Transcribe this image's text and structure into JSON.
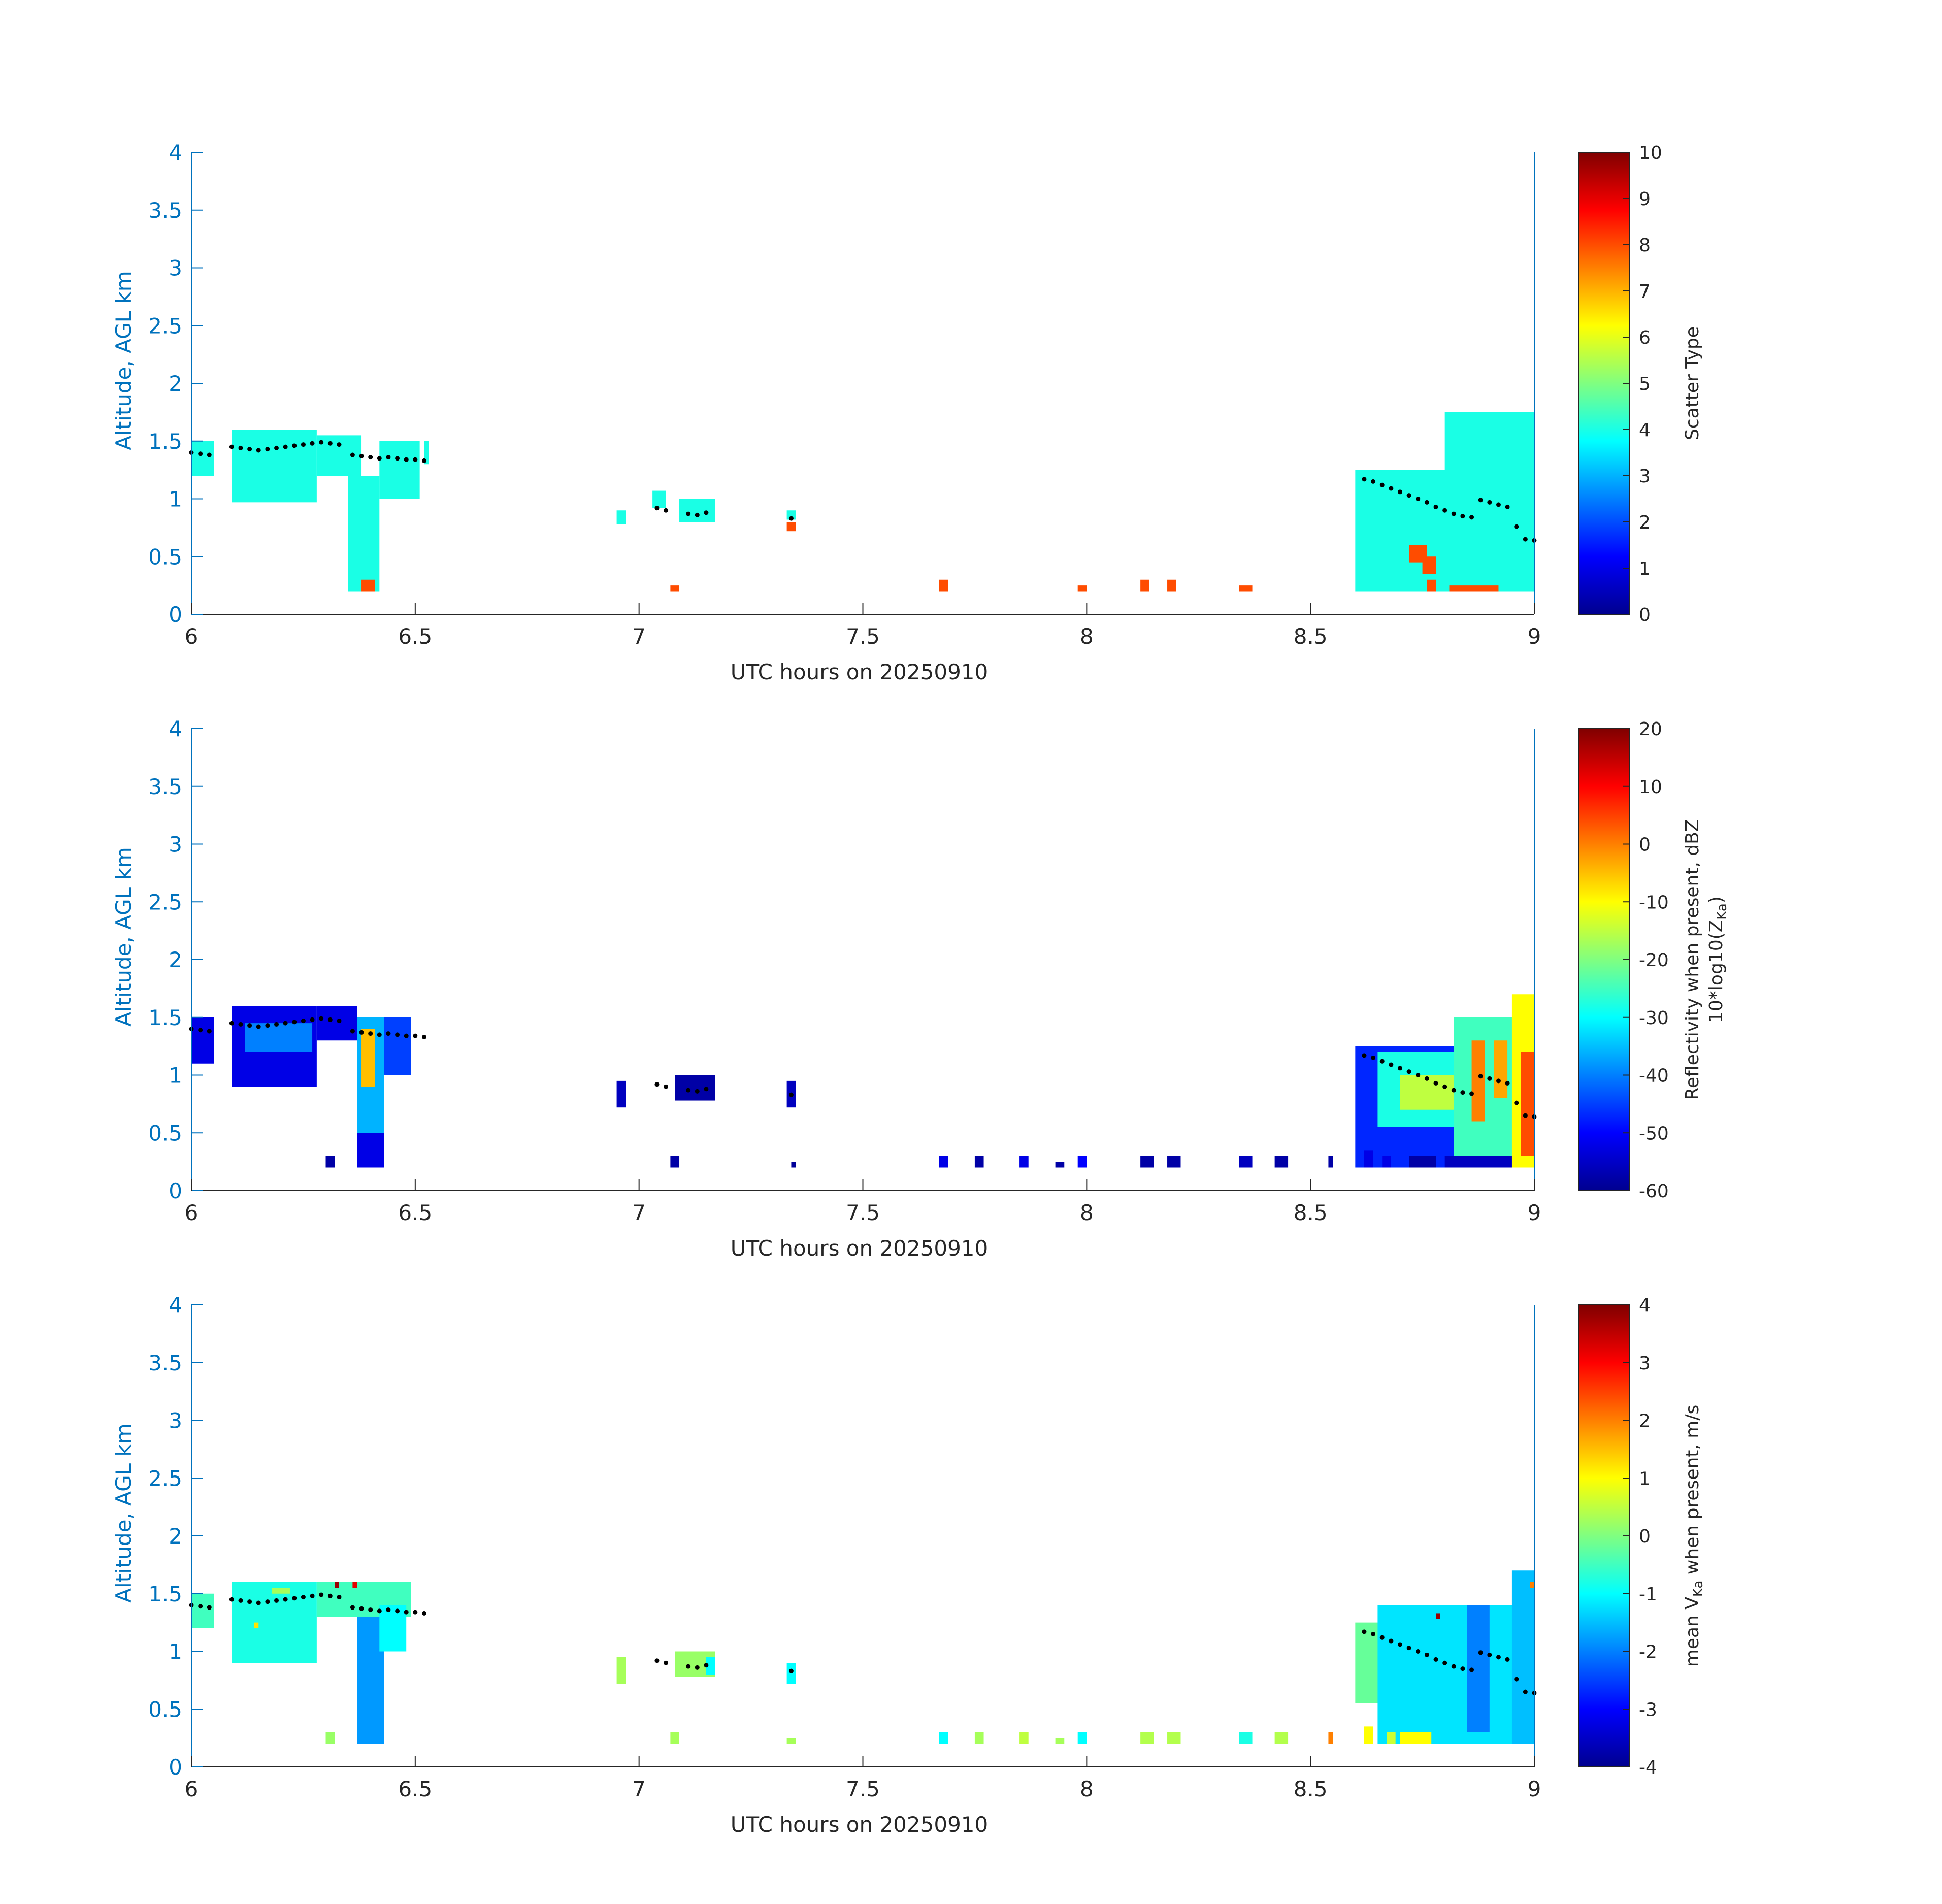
{
  "chart_data": [
    {
      "type": "heatmap",
      "xlabel": "UTC hours on 20250910",
      "ylabel": "Altitude, AGL km",
      "xlim": [
        6,
        9
      ],
      "ylim": [
        0,
        4
      ],
      "xticks": [
        "6",
        "6.5",
        "7",
        "7.5",
        "8",
        "8.5",
        "9"
      ],
      "yticks": [
        "0",
        "0.5",
        "1",
        "1.5",
        "2",
        "2.5",
        "3",
        "3.5",
        "4"
      ],
      "colorbar": {
        "label_lines": [
          "Scatter Type"
        ],
        "clim": [
          0,
          10
        ],
        "ticks": [
          "0",
          "1",
          "2",
          "3",
          "4",
          "5",
          "6",
          "7",
          "8",
          "9",
          "10"
        ]
      },
      "cells": [
        {
          "x0": 6.0,
          "x1": 6.05,
          "y0": 1.2,
          "y1": 1.5,
          "value": 4
        },
        {
          "x0": 6.09,
          "x1": 6.28,
          "y0": 0.97,
          "y1": 1.6,
          "value": 4
        },
        {
          "x0": 6.28,
          "x1": 6.38,
          "y0": 1.2,
          "y1": 1.55,
          "value": 4
        },
        {
          "x0": 6.35,
          "x1": 6.42,
          "y0": 0.2,
          "y1": 1.2,
          "value": 4
        },
        {
          "x0": 6.42,
          "x1": 6.51,
          "y0": 1.0,
          "y1": 1.5,
          "value": 4
        },
        {
          "x0": 6.52,
          "x1": 6.53,
          "y0": 1.3,
          "y1": 1.5,
          "value": 4
        },
        {
          "x0": 6.38,
          "x1": 6.41,
          "y0": 0.2,
          "y1": 0.3,
          "value": 8
        },
        {
          "x0": 6.95,
          "x1": 6.97,
          "y0": 0.78,
          "y1": 0.9,
          "value": 4
        },
        {
          "x0": 7.03,
          "x1": 7.06,
          "y0": 0.92,
          "y1": 1.07,
          "value": 4
        },
        {
          "x0": 7.09,
          "x1": 7.17,
          "y0": 0.8,
          "y1": 1.0,
          "value": 4
        },
        {
          "x0": 7.33,
          "x1": 7.35,
          "y0": 0.82,
          "y1": 0.9,
          "value": 4
        },
        {
          "x0": 7.33,
          "x1": 7.35,
          "y0": 0.72,
          "y1": 0.8,
          "value": 8
        },
        {
          "x0": 7.07,
          "x1": 7.09,
          "y0": 0.2,
          "y1": 0.25,
          "value": 8
        },
        {
          "x0": 7.67,
          "x1": 7.69,
          "y0": 0.2,
          "y1": 0.3,
          "value": 8
        },
        {
          "x0": 7.98,
          "x1": 8.0,
          "y0": 0.2,
          "y1": 0.25,
          "value": 8
        },
        {
          "x0": 8.12,
          "x1": 8.14,
          "y0": 0.2,
          "y1": 0.3,
          "value": 8
        },
        {
          "x0": 8.18,
          "x1": 8.2,
          "y0": 0.2,
          "y1": 0.3,
          "value": 8
        },
        {
          "x0": 8.34,
          "x1": 8.37,
          "y0": 0.2,
          "y1": 0.25,
          "value": 8
        },
        {
          "x0": 8.61,
          "x1": 8.63,
          "y0": 0.2,
          "y1": 0.3,
          "value": 8
        },
        {
          "x0": 8.68,
          "x1": 8.7,
          "y0": 0.2,
          "y1": 0.25,
          "value": 8
        },
        {
          "x0": 8.6,
          "x1": 9.0,
          "y0": 0.2,
          "y1": 1.25,
          "value": 4
        },
        {
          "x0": 8.8,
          "x1": 9.0,
          "y0": 0.2,
          "y1": 1.75,
          "value": 4
        },
        {
          "x0": 8.72,
          "x1": 8.76,
          "y0": 0.45,
          "y1": 0.6,
          "value": 8
        },
        {
          "x0": 8.75,
          "x1": 8.78,
          "y0": 0.35,
          "y1": 0.5,
          "value": 8
        },
        {
          "x0": 8.76,
          "x1": 8.78,
          "y0": 0.2,
          "y1": 0.3,
          "value": 8
        },
        {
          "x0": 8.81,
          "x1": 8.92,
          "y0": 0.2,
          "y1": 0.25,
          "value": 8
        }
      ]
    },
    {
      "type": "heatmap",
      "xlabel": "UTC hours on 20250910",
      "ylabel": "Altitude, AGL km",
      "xlim": [
        6,
        9
      ],
      "ylim": [
        0,
        4
      ],
      "xticks": [
        "6",
        "6.5",
        "7",
        "7.5",
        "8",
        "8.5",
        "9"
      ],
      "yticks": [
        "0",
        "0.5",
        "1",
        "1.5",
        "2",
        "2.5",
        "3",
        "3.5",
        "4"
      ],
      "colorbar": {
        "label_lines": [
          "Reflectivity when present, dBZ",
          "10*log10(Z",
          "Ka",
          ")"
        ],
        "clim": [
          -60,
          20
        ],
        "ticks": [
          "-60",
          "-50",
          "-40",
          "-30",
          "-20",
          "-10",
          "0",
          "10",
          "20"
        ]
      },
      "cells": [
        {
          "x0": 6.0,
          "x1": 6.05,
          "y0": 1.1,
          "y1": 1.5,
          "value": -52
        },
        {
          "x0": 6.09,
          "x1": 6.28,
          "y0": 0.9,
          "y1": 1.6,
          "value": -52
        },
        {
          "x0": 6.12,
          "x1": 6.27,
          "y0": 1.2,
          "y1": 1.45,
          "value": -40
        },
        {
          "x0": 6.28,
          "x1": 6.37,
          "y0": 1.3,
          "y1": 1.6,
          "value": -52
        },
        {
          "x0": 6.37,
          "x1": 6.43,
          "y0": 0.2,
          "y1": 1.5,
          "value": -36
        },
        {
          "x0": 6.38,
          "x1": 6.41,
          "y0": 0.9,
          "y1": 1.4,
          "value": -5
        },
        {
          "x0": 6.37,
          "x1": 6.43,
          "y0": 0.2,
          "y1": 0.5,
          "value": -52
        },
        {
          "x0": 6.43,
          "x1": 6.49,
          "y0": 1.0,
          "y1": 1.5,
          "value": -45
        },
        {
          "x0": 6.3,
          "x1": 6.32,
          "y0": 0.2,
          "y1": 0.3,
          "value": -57
        },
        {
          "x0": 6.95,
          "x1": 6.97,
          "y0": 0.72,
          "y1": 0.95,
          "value": -55
        },
        {
          "x0": 7.08,
          "x1": 7.17,
          "y0": 0.78,
          "y1": 1.0,
          "value": -57
        },
        {
          "x0": 7.33,
          "x1": 7.35,
          "y0": 0.72,
          "y1": 0.95,
          "value": -55
        },
        {
          "x0": 7.07,
          "x1": 7.09,
          "y0": 0.2,
          "y1": 0.3,
          "value": -57
        },
        {
          "x0": 7.34,
          "x1": 7.35,
          "y0": 0.2,
          "y1": 0.25,
          "value": -58
        },
        {
          "x0": 7.67,
          "x1": 7.69,
          "y0": 0.2,
          "y1": 0.3,
          "value": -52
        },
        {
          "x0": 7.75,
          "x1": 7.77,
          "y0": 0.2,
          "y1": 0.3,
          "value": -57
        },
        {
          "x0": 7.85,
          "x1": 7.87,
          "y0": 0.2,
          "y1": 0.3,
          "value": -52
        },
        {
          "x0": 7.93,
          "x1": 7.95,
          "y0": 0.2,
          "y1": 0.25,
          "value": -57
        },
        {
          "x0": 7.98,
          "x1": 8.0,
          "y0": 0.2,
          "y1": 0.3,
          "value": -50
        },
        {
          "x0": 8.12,
          "x1": 8.15,
          "y0": 0.2,
          "y1": 0.3,
          "value": -57
        },
        {
          "x0": 8.18,
          "x1": 8.21,
          "y0": 0.2,
          "y1": 0.3,
          "value": -57
        },
        {
          "x0": 8.34,
          "x1": 8.37,
          "y0": 0.2,
          "y1": 0.3,
          "value": -55
        },
        {
          "x0": 8.42,
          "x1": 8.45,
          "y0": 0.2,
          "y1": 0.3,
          "value": -57
        },
        {
          "x0": 8.54,
          "x1": 8.55,
          "y0": 0.2,
          "y1": 0.3,
          "value": -57
        },
        {
          "x0": 8.6,
          "x1": 9.0,
          "y0": 0.2,
          "y1": 1.25,
          "value": -47
        },
        {
          "x0": 8.65,
          "x1": 8.85,
          "y0": 0.55,
          "y1": 1.2,
          "value": -28
        },
        {
          "x0": 8.7,
          "x1": 8.82,
          "y0": 0.7,
          "y1": 1.0,
          "value": -15
        },
        {
          "x0": 8.82,
          "x1": 9.0,
          "y0": 0.2,
          "y1": 1.5,
          "value": -25
        },
        {
          "x0": 8.86,
          "x1": 8.89,
          "y0": 0.6,
          "y1": 1.3,
          "value": 0
        },
        {
          "x0": 8.91,
          "x1": 8.94,
          "y0": 0.8,
          "y1": 1.3,
          "value": -3
        },
        {
          "x0": 8.95,
          "x1": 9.0,
          "y0": 0.2,
          "y1": 1.7,
          "value": -10
        },
        {
          "x0": 8.97,
          "x1": 9.0,
          "y0": 0.3,
          "y1": 1.2,
          "value": 4
        },
        {
          "x0": 8.62,
          "x1": 8.64,
          "y0": 0.2,
          "y1": 0.35,
          "value": -52
        },
        {
          "x0": 8.66,
          "x1": 8.68,
          "y0": 0.2,
          "y1": 0.3,
          "value": -52
        },
        {
          "x0": 8.72,
          "x1": 8.78,
          "y0": 0.2,
          "y1": 0.3,
          "value": -57
        },
        {
          "x0": 8.8,
          "x1": 8.95,
          "y0": 0.2,
          "y1": 0.3,
          "value": -55
        }
      ]
    },
    {
      "type": "heatmap",
      "xlabel": "UTC hours on 20250910",
      "ylabel": "Altitude, AGL km",
      "xlim": [
        6,
        9
      ],
      "ylim": [
        0,
        4
      ],
      "xticks": [
        "6",
        "6.5",
        "7",
        "7.5",
        "8",
        "8.5",
        "9"
      ],
      "yticks": [
        "0",
        "0.5",
        "1",
        "1.5",
        "2",
        "2.5",
        "3",
        "3.5",
        "4"
      ],
      "colorbar": {
        "label_lines": [
          "mean V",
          "Ka",
          " when present, m/s"
        ],
        "clim": [
          -4,
          4
        ],
        "ticks": [
          "-4",
          "-3",
          "-2",
          "-1",
          "0",
          "1",
          "2",
          "3",
          "4"
        ]
      },
      "cells": [
        {
          "x0": 6.0,
          "x1": 6.05,
          "y0": 1.2,
          "y1": 1.5,
          "value": -0.5
        },
        {
          "x0": 6.09,
          "x1": 6.28,
          "y0": 0.9,
          "y1": 1.6,
          "value": -0.8
        },
        {
          "x0": 6.18,
          "x1": 6.22,
          "y0": 1.5,
          "y1": 1.55,
          "value": 0.3
        },
        {
          "x0": 6.14,
          "x1": 6.15,
          "y0": 1.2,
          "y1": 1.25,
          "value": 1.2
        },
        {
          "x0": 6.28,
          "x1": 6.49,
          "y0": 1.3,
          "y1": 1.6,
          "value": -0.5
        },
        {
          "x0": 6.37,
          "x1": 6.43,
          "y0": 0.2,
          "y1": 1.3,
          "value": -1.8
        },
        {
          "x0": 6.42,
          "x1": 6.48,
          "y0": 1.0,
          "y1": 1.4,
          "value": -1.0
        },
        {
          "x0": 6.32,
          "x1": 6.33,
          "y0": 1.55,
          "y1": 1.6,
          "value": 3.8
        },
        {
          "x0": 6.36,
          "x1": 6.37,
          "y0": 1.55,
          "y1": 1.6,
          "value": 3.2
        },
        {
          "x0": 6.3,
          "x1": 6.32,
          "y0": 0.2,
          "y1": 0.3,
          "value": 0.2
        },
        {
          "x0": 6.95,
          "x1": 6.97,
          "y0": 0.72,
          "y1": 0.95,
          "value": 0.3
        },
        {
          "x0": 7.08,
          "x1": 7.17,
          "y0": 0.78,
          "y1": 1.0,
          "value": 0.2
        },
        {
          "x0": 7.15,
          "x1": 7.17,
          "y0": 0.8,
          "y1": 0.95,
          "value": -1.0
        },
        {
          "x0": 7.33,
          "x1": 7.35,
          "y0": 0.72,
          "y1": 0.9,
          "value": -1.0
        },
        {
          "x0": 7.07,
          "x1": 7.09,
          "y0": 0.2,
          "y1": 0.3,
          "value": 0.3
        },
        {
          "x0": 7.33,
          "x1": 7.35,
          "y0": 0.2,
          "y1": 0.25,
          "value": 0.3
        },
        {
          "x0": 7.67,
          "x1": 7.69,
          "y0": 0.2,
          "y1": 0.3,
          "value": -1.0
        },
        {
          "x0": 7.75,
          "x1": 7.77,
          "y0": 0.2,
          "y1": 0.3,
          "value": 0.3
        },
        {
          "x0": 7.85,
          "x1": 7.87,
          "y0": 0.2,
          "y1": 0.3,
          "value": 0.5
        },
        {
          "x0": 7.93,
          "x1": 7.95,
          "y0": 0.2,
          "y1": 0.25,
          "value": 0.3
        },
        {
          "x0": 7.98,
          "x1": 8.0,
          "y0": 0.2,
          "y1": 0.3,
          "value": -1.0
        },
        {
          "x0": 8.12,
          "x1": 8.15,
          "y0": 0.2,
          "y1": 0.3,
          "value": 0.4
        },
        {
          "x0": 8.18,
          "x1": 8.21,
          "y0": 0.2,
          "y1": 0.3,
          "value": 0.4
        },
        {
          "x0": 8.34,
          "x1": 8.37,
          "y0": 0.2,
          "y1": 0.3,
          "value": -0.8
        },
        {
          "x0": 8.42,
          "x1": 8.45,
          "y0": 0.2,
          "y1": 0.3,
          "value": 0.4
        },
        {
          "x0": 8.54,
          "x1": 8.55,
          "y0": 0.2,
          "y1": 0.3,
          "value": 2.0
        },
        {
          "x0": 8.6,
          "x1": 8.8,
          "y0": 0.55,
          "y1": 1.25,
          "value": -0.2
        },
        {
          "x0": 8.65,
          "x1": 9.0,
          "y0": 0.2,
          "y1": 1.4,
          "value": -1.2
        },
        {
          "x0": 8.85,
          "x1": 8.9,
          "y0": 0.3,
          "y1": 1.4,
          "value": -2.0
        },
        {
          "x0": 8.95,
          "x1": 9.0,
          "y0": 0.2,
          "y1": 1.7,
          "value": -1.5
        },
        {
          "x0": 8.62,
          "x1": 8.64,
          "y0": 0.2,
          "y1": 0.35,
          "value": 1.0
        },
        {
          "x0": 8.67,
          "x1": 8.69,
          "y0": 0.2,
          "y1": 0.3,
          "value": 0.6
        },
        {
          "x0": 8.7,
          "x1": 8.77,
          "y0": 0.2,
          "y1": 0.3,
          "value": 1.0
        },
        {
          "x0": 8.78,
          "x1": 8.79,
          "y0": 1.28,
          "y1": 1.33,
          "value": 3.8
        },
        {
          "x0": 8.99,
          "x1": 9.0,
          "y0": 1.55,
          "y1": 1.6,
          "value": 2.0
        }
      ]
    }
  ],
  "dot_path": [
    [
      6.0,
      1.4
    ],
    [
      6.02,
      1.39
    ],
    [
      6.04,
      1.38
    ],
    [
      6.09,
      1.45
    ],
    [
      6.11,
      1.44
    ],
    [
      6.13,
      1.43
    ],
    [
      6.15,
      1.42
    ],
    [
      6.17,
      1.43
    ],
    [
      6.19,
      1.44
    ],
    [
      6.21,
      1.45
    ],
    [
      6.23,
      1.46
    ],
    [
      6.25,
      1.47
    ],
    [
      6.27,
      1.48
    ],
    [
      6.29,
      1.49
    ],
    [
      6.31,
      1.48
    ],
    [
      6.33,
      1.47
    ],
    [
      6.36,
      1.38
    ],
    [
      6.38,
      1.37
    ],
    [
      6.4,
      1.36
    ],
    [
      6.42,
      1.35
    ],
    [
      6.44,
      1.36
    ],
    [
      6.46,
      1.35
    ],
    [
      6.48,
      1.34
    ],
    [
      6.5,
      1.34
    ],
    [
      6.52,
      1.33
    ],
    [
      7.04,
      0.92
    ],
    [
      7.06,
      0.9
    ],
    [
      7.11,
      0.87
    ],
    [
      7.13,
      0.86
    ],
    [
      7.15,
      0.88
    ],
    [
      7.34,
      0.83
    ],
    [
      8.62,
      1.17
    ],
    [
      8.64,
      1.15
    ],
    [
      8.66,
      1.12
    ],
    [
      8.68,
      1.09
    ],
    [
      8.7,
      1.06
    ],
    [
      8.72,
      1.03
    ],
    [
      8.74,
      1.0
    ],
    [
      8.76,
      0.97
    ],
    [
      8.78,
      0.93
    ],
    [
      8.8,
      0.9
    ],
    [
      8.82,
      0.87
    ],
    [
      8.84,
      0.85
    ],
    [
      8.86,
      0.84
    ],
    [
      8.88,
      0.99
    ],
    [
      8.9,
      0.97
    ],
    [
      8.92,
      0.95
    ],
    [
      8.94,
      0.93
    ],
    [
      8.96,
      0.76
    ],
    [
      8.98,
      0.65
    ],
    [
      9.0,
      0.64
    ]
  ]
}
